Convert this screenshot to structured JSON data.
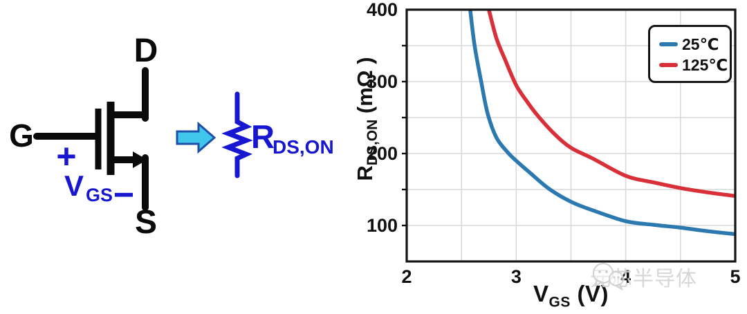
{
  "left_diagram": {
    "drain_label": "D",
    "gate_label": "G",
    "source_label": "S",
    "plus_sign": "+",
    "minus_sign": "−",
    "vgs_label": {
      "base": "V",
      "sub": "GS"
    },
    "rdson_label": {
      "base": "R",
      "sub": "DS,ON"
    },
    "schematic_color": "#0a0a0a",
    "annotation_color": "#1717d2",
    "arrow_fill": "#3fc6ea",
    "arrow_outline": "#1d4fa8"
  },
  "chart_data": {
    "type": "line",
    "title": "",
    "xlabel": {
      "base": "V",
      "sub": "GS",
      "unit": " (V)"
    },
    "ylabel": {
      "base": "R",
      "sub": "DS,ON",
      "unit": " (mΩ )"
    },
    "xlim": [
      2,
      5
    ],
    "ylim": [
      50,
      400
    ],
    "x_ticks": [
      2,
      3,
      4,
      5
    ],
    "y_ticks": [
      100,
      200,
      300,
      400
    ],
    "x_grid_step": 0.5,
    "y_grid_step": 50,
    "grid": true,
    "grid_color": "#d9d9d9",
    "frame_color": "#141414",
    "legend_position": "top-right",
    "series": [
      {
        "name": "25℃",
        "color": "#2b79ae",
        "points": [
          [
            2.58,
            400
          ],
          [
            2.62,
            350
          ],
          [
            2.68,
            300
          ],
          [
            2.74,
            255
          ],
          [
            2.82,
            222
          ],
          [
            2.92,
            202
          ],
          [
            3.0,
            190
          ],
          [
            3.12,
            174
          ],
          [
            3.3,
            151
          ],
          [
            3.5,
            133
          ],
          [
            3.7,
            121
          ],
          [
            4.0,
            106
          ],
          [
            4.25,
            101
          ],
          [
            4.5,
            97
          ],
          [
            4.75,
            92
          ],
          [
            5.0,
            88
          ]
        ]
      },
      {
        "name": "125℃",
        "color": "#d92f38",
        "points": [
          [
            2.75,
            400
          ],
          [
            2.82,
            360
          ],
          [
            2.9,
            330
          ],
          [
            3.0,
            295
          ],
          [
            3.1,
            272
          ],
          [
            3.2,
            252
          ],
          [
            3.35,
            227
          ],
          [
            3.5,
            208
          ],
          [
            3.7,
            193
          ],
          [
            4.0,
            169
          ],
          [
            4.25,
            160
          ],
          [
            4.5,
            152
          ],
          [
            4.75,
            146
          ],
          [
            5.0,
            141
          ]
        ]
      }
    ]
  },
  "watermark": {
    "text": "元芯半导体"
  }
}
